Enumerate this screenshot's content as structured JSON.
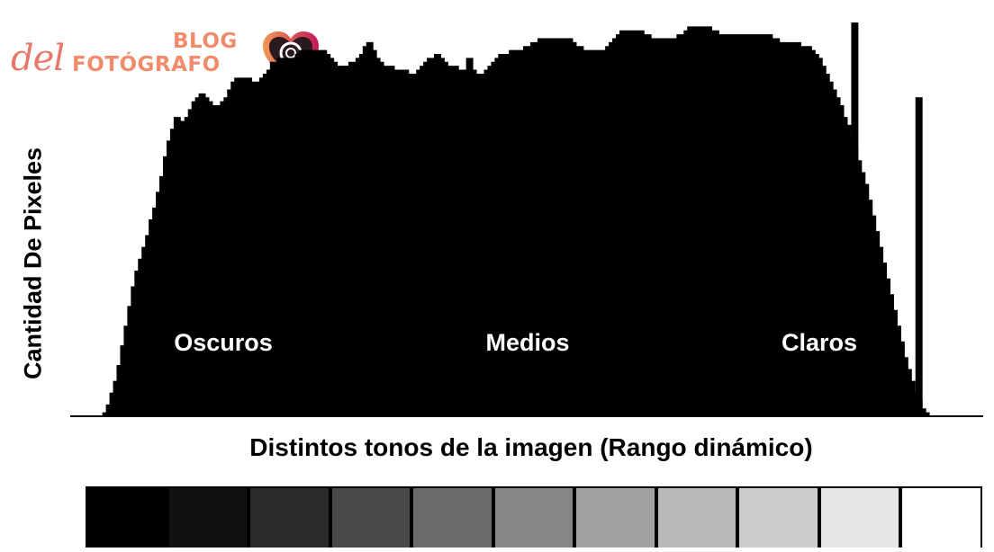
{
  "logo": {
    "del": "del",
    "blog": "BLOG",
    "fotografo": "FOTÓGRAFO",
    "heart_color_left": "#f29a54",
    "heart_color_right": "#c2185b"
  },
  "chart_data": {
    "type": "area",
    "title": "",
    "xlabel": "Distintos tonos de la imagen (Rango dinámico)",
    "ylabel": "Cantidad De Pixeles",
    "fill_color": "#000000",
    "x_range": [
      0,
      255
    ],
    "annotations": [
      "Oscuros",
      "Medios",
      "Claros"
    ],
    "histogram": [
      0,
      0,
      0,
      0,
      0,
      0,
      0,
      0,
      0,
      1,
      3,
      6,
      9,
      13,
      18,
      23,
      28,
      33,
      37,
      40,
      43,
      46,
      50,
      53,
      57,
      61,
      66,
      70,
      73,
      76,
      76,
      75,
      76,
      78,
      80,
      81,
      82,
      82,
      81,
      80,
      79,
      79,
      80,
      81,
      83,
      85,
      86,
      86,
      86,
      86,
      86,
      85,
      85,
      86,
      87,
      88,
      90,
      90,
      91,
      91,
      91,
      91,
      91,
      92,
      93,
      93,
      93,
      93,
      93,
      93,
      93,
      93,
      92,
      91,
      90,
      89,
      89,
      89,
      90,
      90,
      91,
      92,
      94,
      95,
      95,
      93,
      91,
      90,
      89,
      89,
      89,
      88,
      88,
      88,
      88,
      87,
      87,
      88,
      89,
      90,
      91,
      91,
      92,
      92,
      91,
      90,
      89,
      89,
      89,
      88,
      88,
      88,
      88,
      88,
      87,
      87,
      88,
      89,
      90,
      91,
      92,
      92,
      92,
      93,
      93,
      93,
      93,
      94,
      94,
      95,
      95,
      96,
      96,
      96,
      96,
      96,
      96,
      96,
      96,
      96,
      96,
      95,
      94,
      94,
      93,
      93,
      93,
      93,
      93,
      93,
      94,
      95,
      96,
      97,
      98,
      98,
      98,
      98,
      98,
      98,
      98,
      97,
      97,
      96,
      96,
      96,
      96,
      96,
      96,
      96,
      97,
      97,
      98,
      99,
      99,
      99,
      99,
      99,
      99,
      99,
      98,
      98,
      97,
      97,
      97,
      97,
      97,
      97,
      97,
      97,
      97,
      97,
      97,
      97,
      97,
      97,
      97,
      96,
      96,
      95,
      95,
      95,
      95,
      95,
      95,
      94,
      94,
      94,
      93,
      92,
      91,
      89,
      87,
      85,
      83,
      81,
      79,
      76,
      74,
      71,
      68,
      65,
      62,
      59,
      55,
      51,
      47,
      43,
      39,
      35,
      31,
      27,
      23,
      19,
      15,
      12,
      9,
      6,
      4,
      2,
      1,
      0,
      0,
      0,
      0,
      0,
      0,
      0,
      0,
      0,
      0,
      0,
      0,
      0,
      0,
      0
    ],
    "histogram_peaks": [
      {
        "x": 62,
        "y": 82
      },
      {
        "x": 70,
        "y": 76
      },
      {
        "x": 112,
        "y": 91
      },
      {
        "x": 140,
        "y": 84
      },
      {
        "x": 152,
        "y": 83
      },
      {
        "x": 190,
        "y": 76
      },
      {
        "x": 206,
        "y": 80
      },
      {
        "x": 220,
        "y": 100
      },
      {
        "x": 238,
        "y": 81
      }
    ]
  },
  "tone_scale": {
    "label": "",
    "colors": [
      "#000000",
      "#111111",
      "#2b2b2b",
      "#4a4a4a",
      "#6a6a6a",
      "#868686",
      "#a2a2a2",
      "#b9b9b9",
      "#cdcdcd",
      "#e6e6e6",
      "#ffffff"
    ]
  }
}
